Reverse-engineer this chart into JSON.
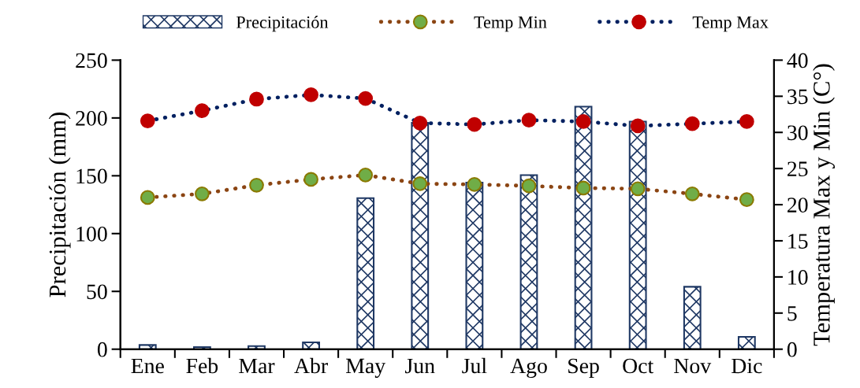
{
  "chart_data": {
    "type": "bar",
    "categories": [
      "Ene",
      "Feb",
      "Mar",
      "Abr",
      "May",
      "Jun",
      "Jul",
      "Ago",
      "Sep",
      "Oct",
      "Nov",
      "Dic"
    ],
    "ylabel": "Precipitación (mm)",
    "y2label": "Temperatura Max y Min (C°)",
    "ylim": [
      0,
      250
    ],
    "yticks": [
      0,
      50,
      100,
      150,
      200,
      250
    ],
    "y2lim": [
      0,
      40
    ],
    "y2ticks": [
      0,
      5,
      10,
      15,
      20,
      25,
      30,
      35,
      40
    ],
    "series": [
      {
        "name": "Precipitación",
        "color": "#1f3864",
        "values": [
          3.6,
          1.8,
          2.7,
          5.9,
          130.7,
          195.8,
          144,
          150.6,
          209.8,
          196.9,
          54,
          10.7
        ]
      },
      {
        "name": "Temp Min",
        "type": "line",
        "axis": "y2",
        "color": "#8b4513",
        "values": [
          21.0,
          21.5,
          22.7,
          23.5,
          24.1,
          22.9,
          22.8,
          22.6,
          22.3,
          22.2,
          21.5,
          20.7
        ]
      },
      {
        "name": "Temp Max",
        "type": "line",
        "axis": "y2",
        "color": "#002060",
        "values": [
          31.6,
          33.0,
          34.6,
          35.2,
          34.7,
          31.3,
          31.1,
          31.7,
          31.5,
          30.9,
          31.2,
          31.5
        ]
      }
    ],
    "marker": "circle",
    "line_style": "dotted",
    "legend": "top",
    "grid": false
  }
}
